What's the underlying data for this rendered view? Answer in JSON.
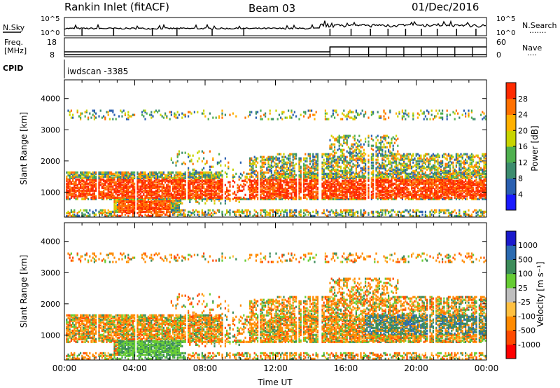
{
  "header": {
    "station": "Rankin Inlet (fitACF)",
    "beam": "Beam 03",
    "date": "01/Dec/2016"
  },
  "noise_panel": {
    "left_label": "N.Sky",
    "right_label": "N.Search",
    "right_marker": "·······",
    "left_ticks": [
      "10^5",
      "10^0"
    ],
    "right_ticks": [
      "10^5",
      "10^0"
    ]
  },
  "freq_panel": {
    "left_label_line1": "Freq.",
    "left_label_line2": "[MHz]",
    "right_label": "Nave",
    "right_marker": "····",
    "left_ticks": [
      "18",
      "8"
    ],
    "right_ticks": [
      "60",
      "0"
    ],
    "step_time_hours": 15.1
  },
  "cpid_panel": {
    "label": "CPID",
    "program": "iwdscan -3385"
  },
  "colors": {
    "power_scale": [
      "#1a1aff",
      "#2a5fb0",
      "#3c8c6e",
      "#4fb04f",
      "#c8d400",
      "#ffb000",
      "#ff7000",
      "#ff2a00"
    ],
    "velocity_scale": [
      "#ff0000",
      "#ff4a00",
      "#ff8a00",
      "#ffc040",
      "#bebebe",
      "#66cc33",
      "#3c8c5a",
      "#2a6ab0",
      "#1a1acc"
    ]
  },
  "chart_data": [
    {
      "type": "heatmap",
      "title": "",
      "xlabel": "",
      "ylabel": "Slant Range [km]",
      "xlim": [
        0,
        24
      ],
      "ylim": [
        200,
        4600
      ],
      "x_ticks": [
        "00:00",
        "04:00",
        "08:00",
        "12:00",
        "16:00",
        "20:00",
        "00:00"
      ],
      "y_ticks": [
        1000,
        2000,
        3000,
        4000
      ],
      "colorbar_label": "Power [dB]",
      "colorbar_ticks": [
        "28",
        "24",
        "20",
        "16",
        "12",
        "8",
        "4"
      ],
      "colorbar_range": [
        0,
        30
      ]
    },
    {
      "type": "heatmap",
      "title": "",
      "xlabel": "Time UT",
      "ylabel": "Slant Range [km]",
      "xlim": [
        0,
        24
      ],
      "ylim": [
        200,
        4600
      ],
      "x_ticks": [
        "00:00",
        "04:00",
        "08:00",
        "12:00",
        "16:00",
        "20:00",
        "00:00"
      ],
      "y_ticks": [
        1000,
        2000,
        3000,
        4000
      ],
      "colorbar_label": "Velocity [m s⁻¹]",
      "colorbar_ticks": [
        "1000",
        "500",
        "100",
        "25",
        "-25",
        "-100",
        "-500",
        "-1000"
      ]
    }
  ]
}
